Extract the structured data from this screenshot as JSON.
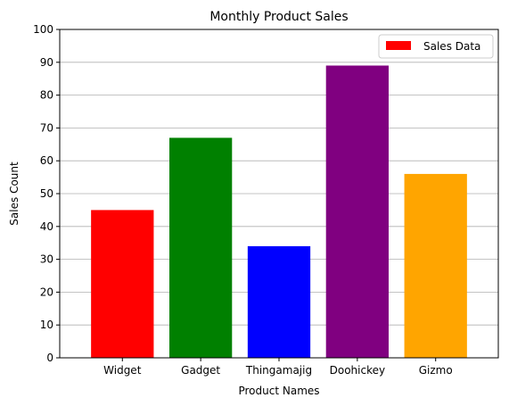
{
  "chart_data": {
    "type": "bar",
    "title": "Monthly Product Sales",
    "xlabel": "Product Names",
    "ylabel": "Sales Count",
    "categories": [
      "Widget",
      "Gadget",
      "Thingamajig",
      "Doohickey",
      "Gizmo"
    ],
    "values": [
      45,
      67,
      34,
      89,
      56
    ],
    "bar_colors": [
      "#ff0000",
      "#008000",
      "#0000ff",
      "#800080",
      "#ffa500"
    ],
    "ylim": [
      0,
      100
    ],
    "yticks": [
      "0",
      "10",
      "20",
      "30",
      "40",
      "50",
      "60",
      "70",
      "80",
      "90",
      "100"
    ],
    "grid": "y-axis horizontal lines",
    "legend": {
      "label": "Sales Data",
      "color": "#ff0000",
      "placement": "top-right"
    }
  }
}
